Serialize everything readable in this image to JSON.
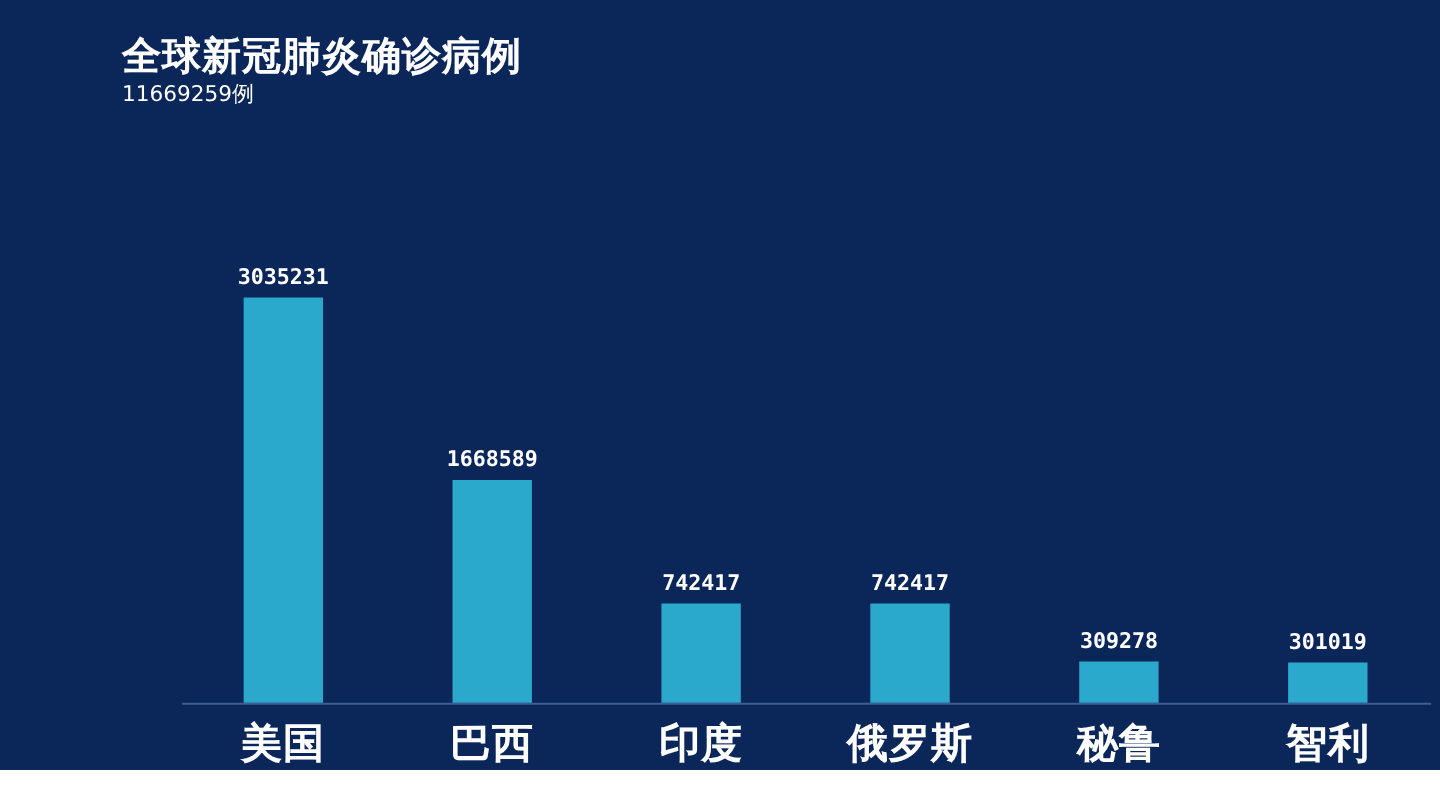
{
  "chart_data": {
    "type": "bar",
    "title": "全球新冠肺炎确诊病例",
    "subtitle": "11669259例",
    "categories": [
      "美国",
      "巴西",
      "印度",
      "俄罗斯",
      "秘鲁",
      "智利"
    ],
    "values": [
      3035231,
      1668589,
      742417,
      742417,
      309278,
      301019
    ],
    "color": "#2aa9cc",
    "data_labels": true
  }
}
